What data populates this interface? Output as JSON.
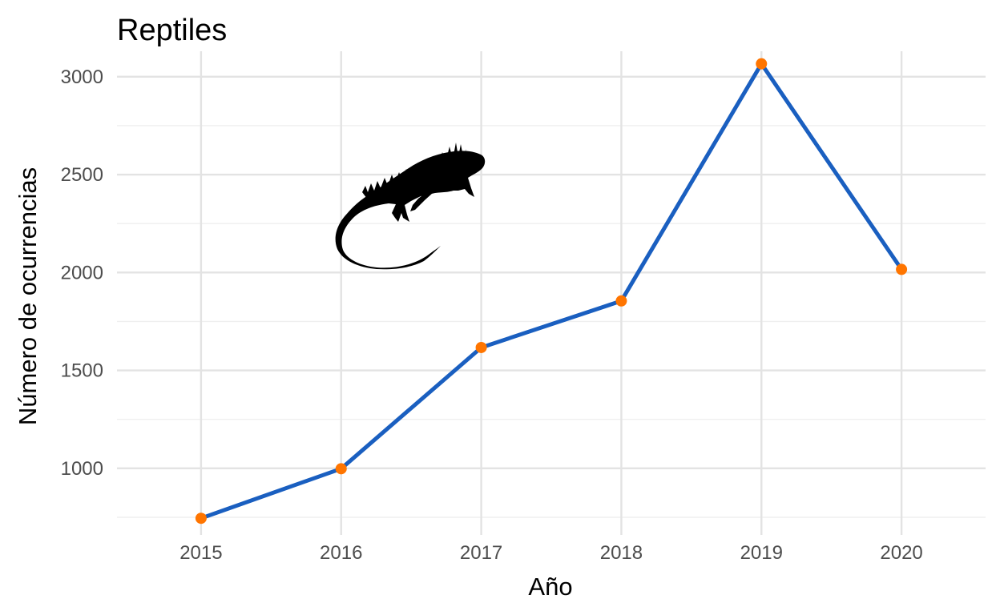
{
  "chart_data": {
    "type": "line",
    "title": "Reptiles",
    "xlabel": "Año",
    "ylabel": "Número de ocurrencias",
    "x": [
      2015,
      2016,
      2017,
      2018,
      2019,
      2020
    ],
    "series": [
      {
        "values": [
          745,
          998,
          1617,
          1855,
          3066,
          2016
        ]
      }
    ],
    "xticks": [
      "2015",
      "2016",
      "2017",
      "2018",
      "2019",
      "2020"
    ],
    "yticks": [
      1000,
      1500,
      2000,
      2500,
      3000
    ],
    "xlim": [
      2014.4,
      2020.6
    ],
    "ylim": [
      660,
      3130
    ],
    "grid": true,
    "legend": "none",
    "annotation_icon": "iguana-silhouette-icon",
    "colors": {
      "line": "#1a5fc0",
      "points": "#ff7500",
      "grid": "#e3e3e3",
      "tick_text": "#4d4d4d"
    }
  }
}
